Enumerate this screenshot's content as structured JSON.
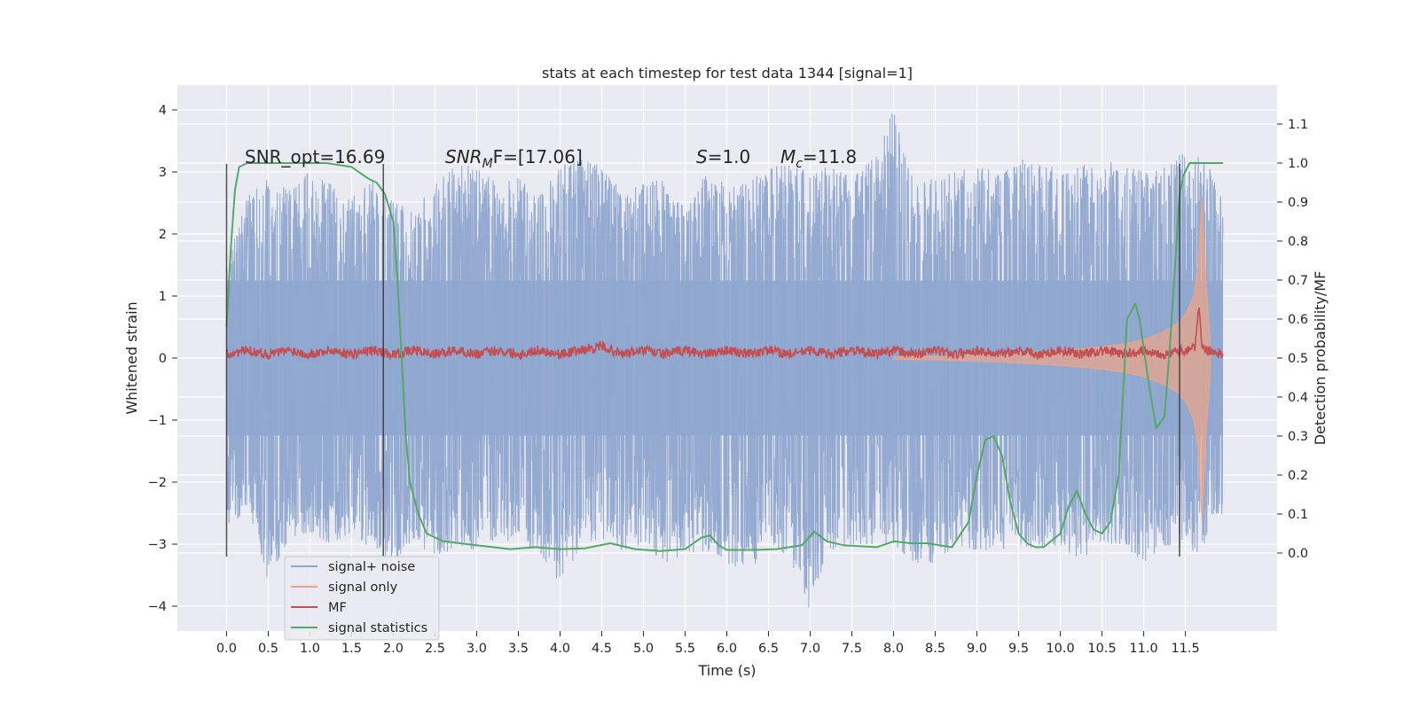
{
  "chart_data": {
    "type": "line",
    "title": "stats at each timestep for test data 1344 [signal=1]",
    "xlabel": "Time (s)",
    "ylabel": "Whitened strain",
    "ylabel_right": "Detection probability/MF",
    "xlim": [
      -0.59,
      12.6
    ],
    "ylim": [
      -4.4,
      4.4
    ],
    "ylim_right": [
      -0.2,
      1.2
    ],
    "x_ticks": [
      "0.0",
      "0.5",
      "1.0",
      "1.5",
      "2.0",
      "2.5",
      "3.0",
      "3.5",
      "4.0",
      "4.5",
      "5.0",
      "5.5",
      "6.0",
      "6.5",
      "7.0",
      "7.5",
      "8.0",
      "8.5",
      "9.0",
      "9.5",
      "10.0",
      "10.5",
      "11.0",
      "11.5"
    ],
    "y_ticks": [
      "4",
      "3",
      "2",
      "1",
      "0",
      "−1",
      "−2",
      "−3",
      "−4"
    ],
    "y_ticks_right": [
      "1.1",
      "1.0",
      "0.9",
      "0.8",
      "0.7",
      "0.6",
      "0.5",
      "0.4",
      "0.3",
      "0.2",
      "0.1",
      "0.0"
    ],
    "grid": true,
    "legend": {
      "placement": "lower-left",
      "entries": [
        {
          "label": "signal+ noise",
          "color": "#8fa6cf"
        },
        {
          "label": "signal only",
          "color": "#e9a58c"
        },
        {
          "label": "MF",
          "color": "#c44e52"
        },
        {
          "label": "signal statistics",
          "color": "#55a868"
        }
      ]
    },
    "annotations": {
      "snr_opt": "SNR_opt=16.69",
      "snr_mf_sym": "SNR",
      "snr_mf_sub": "M",
      "snr_mf_rest": "F=[17.06]",
      "s_sym": "S",
      "s_rest": "=1.0",
      "mc_sym": "M",
      "mc_sub": "c",
      "mc_rest": "=11.8"
    },
    "vertical_markers_x": [
      0.0,
      1.88,
      11.43
    ],
    "series": [
      {
        "name": "signal+ noise",
        "color": "#8fa6cf",
        "axis": "left",
        "envelope_x": [
          0.0,
          0.25,
          0.5,
          0.75,
          1.0,
          1.25,
          1.5,
          1.75,
          2.0,
          2.25,
          2.5,
          2.75,
          3.0,
          3.25,
          3.5,
          3.75,
          4.0,
          4.25,
          4.5,
          4.75,
          5.0,
          5.25,
          5.5,
          5.75,
          6.0,
          6.25,
          6.5,
          6.75,
          7.0,
          7.25,
          7.5,
          7.75,
          8.0,
          8.25,
          8.5,
          8.75,
          9.0,
          9.25,
          9.5,
          9.75,
          10.0,
          10.25,
          10.5,
          10.75,
          11.0,
          11.25,
          11.5,
          11.75,
          11.95
        ],
        "upper": [
          1.5,
          2.6,
          2.9,
          2.7,
          3.0,
          2.8,
          2.6,
          2.9,
          2.5,
          2.4,
          2.8,
          3.1,
          3.1,
          2.8,
          2.9,
          2.6,
          3.1,
          3.2,
          3.1,
          2.7,
          2.8,
          2.9,
          2.4,
          3.0,
          2.8,
          2.8,
          3.1,
          3.1,
          3.0,
          3.1,
          2.9,
          3.2,
          4.0,
          2.8,
          2.9,
          3.0,
          3.1,
          3.0,
          3.2,
          3.2,
          3.0,
          3.1,
          3.2,
          3.1,
          3.0,
          3.2,
          3.3,
          3.2,
          2.5
        ],
        "lower": [
          -2.8,
          -2.4,
          -3.6,
          -2.9,
          -2.8,
          -3.0,
          -2.8,
          -3.1,
          -3.3,
          -2.9,
          -3.3,
          -3.0,
          -3.1,
          -2.9,
          -3.0,
          -3.1,
          -3.7,
          -3.0,
          -2.9,
          -3.1,
          -3.0,
          -3.3,
          -3.2,
          -3.1,
          -3.3,
          -3.5,
          -3.0,
          -3.2,
          -4.1,
          -3.1,
          -3.0,
          -3.0,
          -3.0,
          -3.3,
          -3.3,
          -3.0,
          -3.1,
          -3.1,
          -3.0,
          -3.1,
          -3.0,
          -3.3,
          -3.0,
          -3.0,
          -3.3,
          -3.0,
          -3.3,
          -3.0,
          -2.5
        ]
      },
      {
        "name": "signal only",
        "color": "#e9a58c",
        "axis": "left",
        "envelope_x": [
          8.0,
          8.5,
          9.0,
          9.5,
          10.0,
          10.5,
          10.8,
          11.0,
          11.2,
          11.4,
          11.5,
          11.6,
          11.65,
          11.7,
          11.75,
          11.8
        ],
        "amplitude": [
          0.02,
          0.03,
          0.05,
          0.08,
          0.12,
          0.18,
          0.24,
          0.3,
          0.4,
          0.55,
          0.7,
          1.0,
          1.5,
          2.6,
          1.2,
          0.2
        ]
      },
      {
        "name": "MF",
        "color": "#c44e52",
        "axis": "right",
        "x": [
          0.0,
          0.25,
          0.5,
          0.75,
          1.0,
          1.25,
          1.5,
          1.75,
          2.0,
          2.25,
          2.5,
          2.75,
          3.0,
          3.25,
          3.5,
          3.75,
          4.0,
          4.25,
          4.5,
          4.75,
          5.0,
          5.25,
          5.5,
          5.75,
          6.0,
          6.25,
          6.5,
          6.75,
          7.0,
          7.25,
          7.5,
          7.75,
          8.0,
          8.25,
          8.5,
          8.75,
          9.0,
          9.25,
          9.5,
          9.75,
          10.0,
          10.25,
          10.5,
          10.75,
          11.0,
          11.25,
          11.5,
          11.62,
          11.66,
          11.7,
          11.75,
          11.95
        ],
        "values": [
          0.51,
          0.52,
          0.51,
          0.52,
          0.51,
          0.52,
          0.51,
          0.52,
          0.51,
          0.52,
          0.51,
          0.52,
          0.51,
          0.52,
          0.51,
          0.52,
          0.51,
          0.52,
          0.53,
          0.51,
          0.52,
          0.51,
          0.52,
          0.51,
          0.52,
          0.51,
          0.52,
          0.51,
          0.52,
          0.51,
          0.52,
          0.51,
          0.52,
          0.51,
          0.52,
          0.51,
          0.52,
          0.51,
          0.52,
          0.51,
          0.52,
          0.51,
          0.52,
          0.51,
          0.52,
          0.51,
          0.52,
          0.53,
          0.63,
          0.53,
          0.52,
          0.51
        ]
      },
      {
        "name": "signal statistics",
        "color": "#55a868",
        "axis": "right",
        "x": [
          0.0,
          0.05,
          0.1,
          0.15,
          0.25,
          0.4,
          0.8,
          1.2,
          1.5,
          1.7,
          1.8,
          1.9,
          2.0,
          2.05,
          2.1,
          2.15,
          2.2,
          2.3,
          2.4,
          2.6,
          3.0,
          3.4,
          3.7,
          4.0,
          4.3,
          4.6,
          4.9,
          5.2,
          5.5,
          5.7,
          5.8,
          5.9,
          6.0,
          6.3,
          6.6,
          6.9,
          7.05,
          7.2,
          7.4,
          7.8,
          8.0,
          8.2,
          8.4,
          8.7,
          8.9,
          9.0,
          9.1,
          9.2,
          9.3,
          9.4,
          9.5,
          9.6,
          9.7,
          9.8,
          10.0,
          10.1,
          10.2,
          10.3,
          10.4,
          10.5,
          10.6,
          10.7,
          10.8,
          10.9,
          10.95,
          11.05,
          11.15,
          11.25,
          11.32,
          11.38,
          11.43,
          11.48,
          11.55,
          11.65,
          11.75,
          11.95
        ],
        "values": [
          0.58,
          0.78,
          0.93,
          0.99,
          1.0,
          1.0,
          1.0,
          1.0,
          0.99,
          0.96,
          0.95,
          0.92,
          0.85,
          0.7,
          0.5,
          0.3,
          0.18,
          0.1,
          0.05,
          0.03,
          0.02,
          0.01,
          0.015,
          0.01,
          0.012,
          0.025,
          0.01,
          0.005,
          0.01,
          0.04,
          0.045,
          0.02,
          0.008,
          0.008,
          0.01,
          0.02,
          0.055,
          0.03,
          0.02,
          0.015,
          0.03,
          0.025,
          0.025,
          0.015,
          0.08,
          0.2,
          0.29,
          0.3,
          0.25,
          0.13,
          0.05,
          0.025,
          0.015,
          0.015,
          0.05,
          0.12,
          0.16,
          0.1,
          0.06,
          0.05,
          0.08,
          0.2,
          0.6,
          0.64,
          0.6,
          0.45,
          0.32,
          0.35,
          0.55,
          0.75,
          0.92,
          0.97,
          1.0,
          1.0,
          1.0,
          1.0
        ]
      }
    ]
  }
}
